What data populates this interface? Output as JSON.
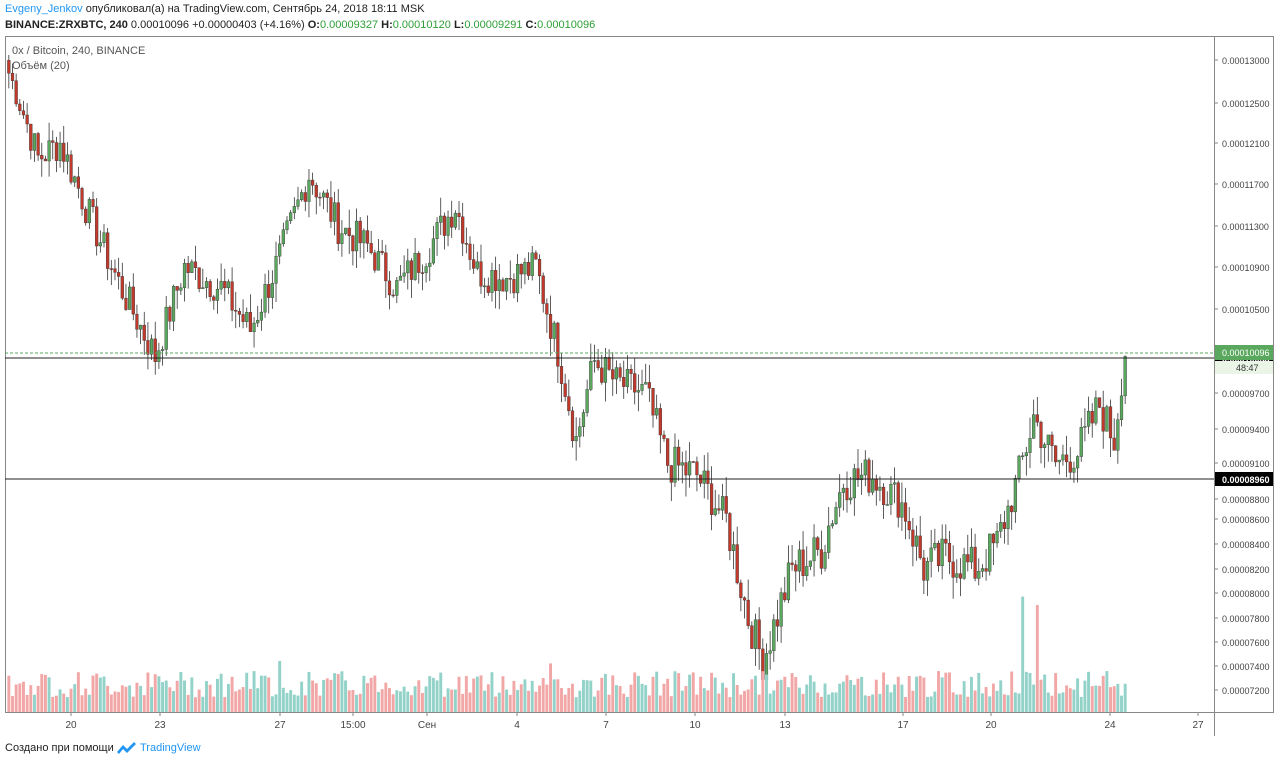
{
  "header": {
    "author": "Evgeny_Jenkov",
    "published": "опубликовал(а) на TradingView.com, Сентябрь 24, 2018 18:11 MSK",
    "symbol": "BINANCE:ZRXBTC, 240",
    "last": "0.00010096",
    "change": "+0.00000403 (+4.16%)",
    "o_label": "O:",
    "o_value": "0.00009327",
    "h_label": "H:",
    "h_value": "0.00010120",
    "l_label": "L:",
    "l_value": "0.00009291",
    "c_label": "C:",
    "c_value": "0.00010096"
  },
  "legend": {
    "title": "0x / Bitcoin, 240, BINANCE",
    "volume": "Объём (20)"
  },
  "footer": {
    "text": "Создано при помощи",
    "brand": "TradingView"
  },
  "colors": {
    "up": "#5aa85d",
    "down": "#c0392b",
    "vol_up": "#93d2c9",
    "vol_down": "#f2a7a7",
    "last_price": "#5aa85d",
    "level_label": "#000000"
  },
  "chart_data": {
    "type": "candlestick",
    "symbol": "ZRXBTC",
    "interval": "240",
    "exchange": "BINANCE",
    "y_ticks": [
      "0.00013000",
      "0.00012500",
      "0.00012100",
      "0.00011700",
      "0.00011300",
      "0.00010900",
      "0.00010500",
      "0.00009700",
      "0.00009400",
      "0.00009100",
      "0.00008800",
      "0.00008600",
      "0.00008400",
      "0.00008200",
      "0.00008000",
      "0.00007800",
      "0.00007600",
      "0.00007400",
      "0.00007200"
    ],
    "x_ticks": [
      "20",
      "23",
      "27",
      "15:00",
      "Сен",
      "4",
      "7",
      "10",
      "13",
      "17",
      "20",
      "24",
      "27"
    ],
    "horizontal_levels": [
      "0.00010053",
      "0.00008960"
    ],
    "last_price_label": "0.00010096",
    "countdown": "48:47",
    "close_path": [
      {
        "bar": 0,
        "price": 0.0001285
      },
      {
        "bar": 8,
        "price": 0.0001195
      },
      {
        "bar": 14,
        "price": 0.000121
      },
      {
        "bar": 22,
        "price": 0.000114
      },
      {
        "bar": 30,
        "price": 0.0001075
      },
      {
        "bar": 40,
        "price": 0.0001005
      },
      {
        "bar": 48,
        "price": 0.000109
      },
      {
        "bar": 58,
        "price": 0.000107
      },
      {
        "bar": 66,
        "price": 0.000103
      },
      {
        "bar": 74,
        "price": 0.00011
      },
      {
        "bar": 82,
        "price": 0.000118
      },
      {
        "bar": 90,
        "price": 0.000113
      },
      {
        "bar": 98,
        "price": 0.000111
      },
      {
        "bar": 106,
        "price": 0.000107
      },
      {
        "bar": 114,
        "price": 0.0001105
      },
      {
        "bar": 122,
        "price": 0.000115
      },
      {
        "bar": 128,
        "price": 0.0001085
      },
      {
        "bar": 136,
        "price": 0.000108
      },
      {
        "bar": 144,
        "price": 0.000109
      },
      {
        "bar": 150,
        "price": 0.000101
      },
      {
        "bar": 155,
        "price": 9.3e-05
      },
      {
        "bar": 160,
        "price": 0.0001
      },
      {
        "bar": 166,
        "price": 9.8e-05
      },
      {
        "bar": 174,
        "price": 9.7e-05
      },
      {
        "bar": 180,
        "price": 9.1e-05
      },
      {
        "bar": 188,
        "price": 9e-05
      },
      {
        "bar": 196,
        "price": 8.6e-05
      },
      {
        "bar": 202,
        "price": 7.8e-05
      },
      {
        "bar": 206,
        "price": 7.45e-05
      },
      {
        "bar": 214,
        "price": 8.2e-05
      },
      {
        "bar": 222,
        "price": 8.35e-05
      },
      {
        "bar": 228,
        "price": 8.95e-05
      },
      {
        "bar": 236,
        "price": 9e-05
      },
      {
        "bar": 244,
        "price": 8.75e-05
      },
      {
        "bar": 250,
        "price": 8.2e-05
      },
      {
        "bar": 256,
        "price": 8.3e-05
      },
      {
        "bar": 264,
        "price": 8.2e-05
      },
      {
        "bar": 270,
        "price": 8.4e-05
      },
      {
        "bar": 276,
        "price": 9e-05
      },
      {
        "bar": 280,
        "price": 9.5e-05
      },
      {
        "bar": 286,
        "price": 9.1e-05
      },
      {
        "bar": 292,
        "price": 9.2e-05
      },
      {
        "bar": 298,
        "price": 9.6e-05
      },
      {
        "bar": 302,
        "price": 9.3e-05
      },
      {
        "bar": 305,
        "price": 0.000101
      }
    ],
    "volume_spikes": [
      {
        "bar": 277,
        "value": 0.95
      },
      {
        "bar": 281,
        "value": 0.88
      },
      {
        "bar": 74,
        "value": 0.42
      },
      {
        "bar": 148,
        "value": 0.4
      }
    ]
  }
}
